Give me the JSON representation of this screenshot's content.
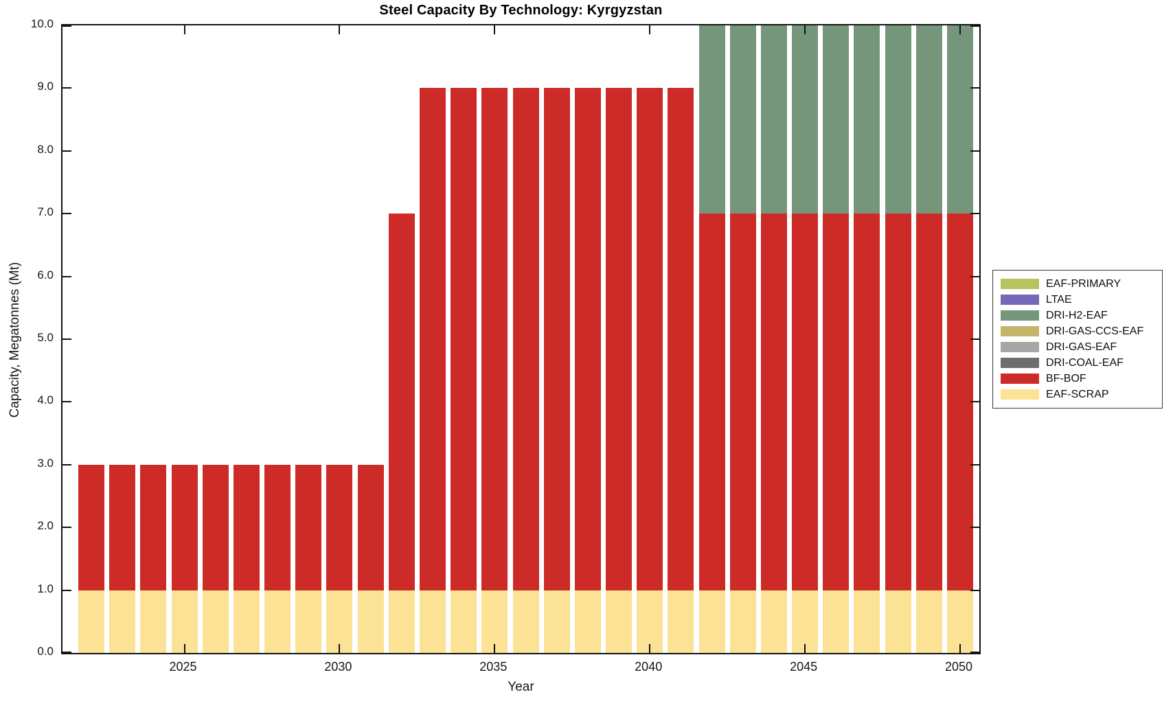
{
  "chart_data": {
    "type": "bar",
    "stacked": true,
    "title": "Steel Capacity By Technology: Kyrgyzstan",
    "xlabel": "Year",
    "ylabel": "Capacity, Megatonnes (Mt)",
    "ylim": [
      0,
      10
    ],
    "grid": false,
    "legend_position": "right-outside",
    "x": [
      2022,
      2023,
      2024,
      2025,
      2026,
      2027,
      2028,
      2029,
      2030,
      2031,
      2032,
      2033,
      2034,
      2035,
      2036,
      2037,
      2038,
      2039,
      2040,
      2041,
      2042,
      2043,
      2044,
      2045,
      2046,
      2047,
      2048,
      2049,
      2050
    ],
    "xticks": [
      2025,
      2030,
      2035,
      2040,
      2045,
      2050
    ],
    "xtick_labels": [
      "2025",
      "2030",
      "2035",
      "2040",
      "2045",
      "2050"
    ],
    "yticks": [
      0,
      1,
      2,
      3,
      4,
      5,
      6,
      7,
      8,
      9,
      10
    ],
    "ytick_labels": [
      "0.0",
      "1.0",
      "2.0",
      "3.0",
      "4.0",
      "5.0",
      "6.0",
      "7.0",
      "8.0",
      "9.0",
      "10.0"
    ],
    "series": [
      {
        "name": "EAF-PRIMARY",
        "color": "#b6c35f",
        "values": [
          0,
          0,
          0,
          0,
          0,
          0,
          0,
          0,
          0,
          0,
          0,
          0,
          0,
          0,
          0,
          0,
          0,
          0,
          0,
          0,
          0,
          0,
          0,
          0,
          0,
          0,
          0,
          0,
          0
        ]
      },
      {
        "name": "LTAE",
        "color": "#7568b8",
        "values": [
          0,
          0,
          0,
          0,
          0,
          0,
          0,
          0,
          0,
          0,
          0,
          0,
          0,
          0,
          0,
          0,
          0,
          0,
          0,
          0,
          0,
          0,
          0,
          0,
          0,
          0,
          0,
          0,
          0
        ]
      },
      {
        "name": "DRI-H2-EAF",
        "color": "#76967c",
        "values": [
          0,
          0,
          0,
          0,
          0,
          0,
          0,
          0,
          0,
          0,
          0,
          0,
          0,
          0,
          0,
          0,
          0,
          0,
          0,
          0,
          3,
          3,
          3,
          3,
          3,
          3,
          3,
          3,
          3
        ]
      },
      {
        "name": "DRI-GAS-CCS-EAF",
        "color": "#c3b56a",
        "values": [
          0,
          0,
          0,
          0,
          0,
          0,
          0,
          0,
          0,
          0,
          0,
          0,
          0,
          0,
          0,
          0,
          0,
          0,
          0,
          0,
          0,
          0,
          0,
          0,
          0,
          0,
          0,
          0,
          0
        ]
      },
      {
        "name": "DRI-GAS-EAF",
        "color": "#a6a6a6",
        "values": [
          0,
          0,
          0,
          0,
          0,
          0,
          0,
          0,
          0,
          0,
          0,
          0,
          0,
          0,
          0,
          0,
          0,
          0,
          0,
          0,
          0,
          0,
          0,
          0,
          0,
          0,
          0,
          0,
          0
        ]
      },
      {
        "name": "DRI-COAL-EAF",
        "color": "#6e6e6e",
        "values": [
          0,
          0,
          0,
          0,
          0,
          0,
          0,
          0,
          0,
          0,
          0,
          0,
          0,
          0,
          0,
          0,
          0,
          0,
          0,
          0,
          0,
          0,
          0,
          0,
          0,
          0,
          0,
          0,
          0
        ]
      },
      {
        "name": "BF-BOF",
        "color": "#cd2b27",
        "values": [
          2,
          2,
          2,
          2,
          2,
          2,
          2,
          2,
          2,
          2,
          6,
          8,
          8,
          8,
          8,
          8,
          8,
          8,
          8,
          8,
          6,
          6,
          6,
          6,
          6,
          6,
          6,
          6,
          6
        ]
      },
      {
        "name": "EAF-SCRAP",
        "color": "#fce294",
        "values": [
          1,
          1,
          1,
          1,
          1,
          1,
          1,
          1,
          1,
          1,
          1,
          1,
          1,
          1,
          1,
          1,
          1,
          1,
          1,
          1,
          1,
          1,
          1,
          1,
          1,
          1,
          1,
          1,
          1
        ]
      }
    ]
  }
}
